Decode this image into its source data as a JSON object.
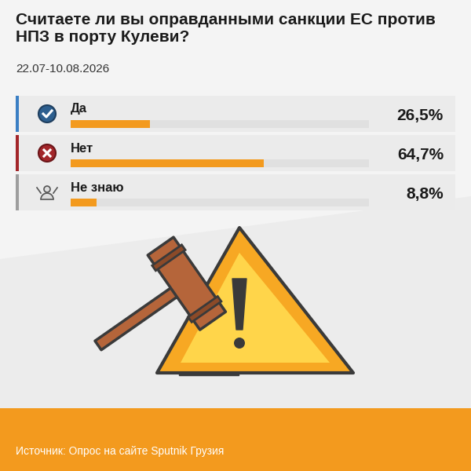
{
  "chart_data": {
    "type": "bar",
    "orientation": "horizontal",
    "title": "Считаете ли вы оправданными санкции ЕС против НПЗ в порту Кулеви?",
    "subtitle": "22.07-10.08.2026",
    "categories": [
      "Да",
      "Нет",
      "Не знаю"
    ],
    "values": [
      26.5,
      64.7,
      8.8
    ],
    "value_labels": [
      "26,5%",
      "64,7%",
      "8,8%"
    ],
    "data_labels": true,
    "color": "#f39a1e",
    "xlim": [
      0,
      100
    ],
    "xticks": [],
    "tick_labels": false,
    "source": "Источник: Опрос на сайте Sputnik Грузия"
  }
}
